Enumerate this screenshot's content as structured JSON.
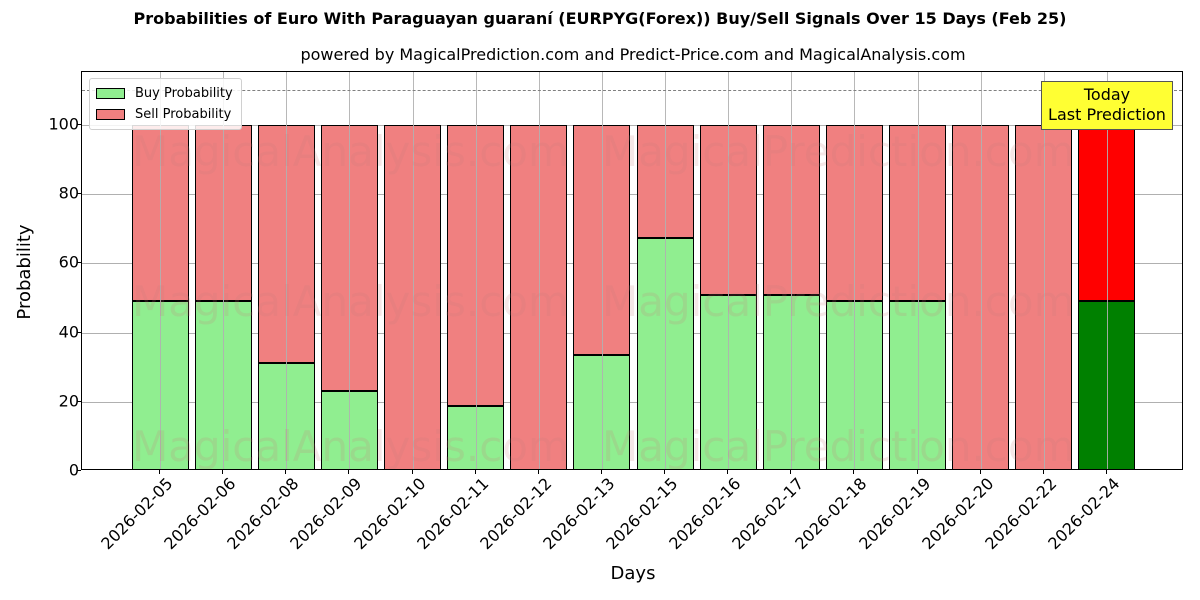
{
  "header": {
    "title": "Probabilities of Euro With Paraguayan guaraní (EURPYG(Forex)) Buy/Sell Signals Over 15 Days (Feb 25)",
    "subtitle": "powered by MagicalPrediction.com and Predict-Price.com and MagicalAnalysis.com"
  },
  "legend": {
    "buy_label": "Buy Probability",
    "sell_label": "Sell Probability"
  },
  "annotation": {
    "line1": "Today",
    "line2": "Last Prediction"
  },
  "axes": {
    "xlabel": "Days",
    "ylabel": "Probability",
    "yticks": [
      "0",
      "20",
      "40",
      "60",
      "80",
      "100"
    ]
  },
  "watermarks": [
    "MagicalAnalysis.com",
    "MagicalPrediction.com"
  ],
  "colors": {
    "buy": "#90ee90",
    "sell": "#f08080",
    "buy_today": "#008000",
    "sell_today": "#ff0000",
    "annotation_bg": "#ffff33"
  },
  "chart_data": {
    "type": "bar",
    "stacked": true,
    "title": "Probabilities of Euro With Paraguayan guaraní (EURPYG(Forex)) Buy/Sell Signals Over 15 Days (Feb 25)",
    "subtitle": "powered by MagicalPrediction.com and Predict-Price.com and MagicalAnalysis.com",
    "xlabel": "Days",
    "ylabel": "Probability",
    "ylim": [
      0,
      115
    ],
    "yticks": [
      0,
      20,
      40,
      60,
      80,
      100
    ],
    "grid": true,
    "legend_position": "upper left",
    "reference_line": {
      "y": 110,
      "style": "dashed",
      "color": "#808080"
    },
    "categories": [
      "2026-02-05",
      "2026-02-06",
      "2026-02-08",
      "2026-02-09",
      "2026-02-10",
      "2026-02-11",
      "2026-02-12",
      "2026-02-13",
      "2026-02-15",
      "2026-02-16",
      "2026-02-17",
      "2026-02-18",
      "2026-02-19",
      "2026-02-20",
      "2026-02-22",
      "2026-02-24"
    ],
    "series": [
      {
        "name": "Buy Probability",
        "values": [
          49.1,
          49.1,
          31.2,
          23.1,
          0,
          18.8,
          0,
          33.5,
          67.3,
          50.9,
          50.9,
          49.1,
          49.1,
          0,
          0,
          49.1
        ]
      },
      {
        "name": "Sell Probability",
        "values": [
          50.9,
          50.9,
          68.8,
          76.9,
          100,
          81.2,
          100,
          66.5,
          32.7,
          49.1,
          49.1,
          50.9,
          50.9,
          100,
          100,
          50.9
        ]
      }
    ],
    "annotations": [
      {
        "text": "Today\nLast Prediction",
        "x": "2026-02-24"
      }
    ]
  }
}
